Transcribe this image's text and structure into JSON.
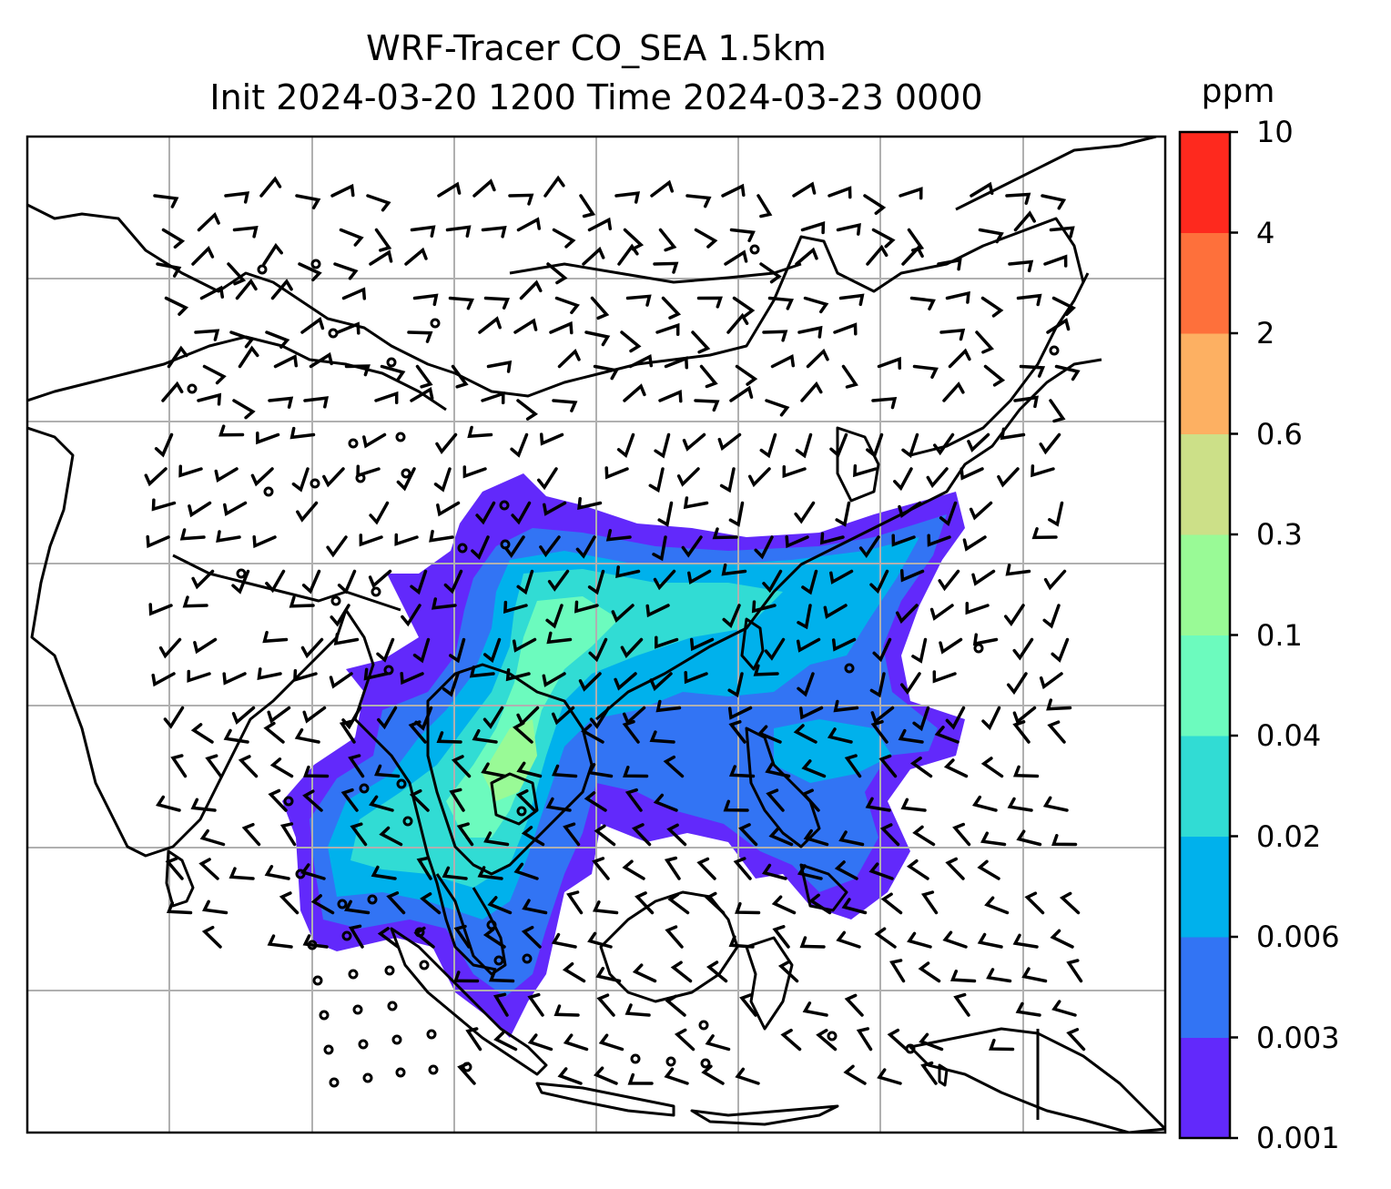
{
  "title": {
    "line1": "WRF-Tracer CO_SEA 1.5km",
    "line2": "Init 2024-03-20 1200 Time 2024-03-23 0000"
  },
  "colorbar": {
    "unit": "ppm",
    "levels": [
      "0.001",
      "0.003",
      "0.006",
      "0.02",
      "0.04",
      "0.1",
      "0.3",
      "0.6",
      "2",
      "4",
      "10"
    ],
    "colors": [
      "#6229fb",
      "#3274f4",
      "#00b1ec",
      "#31dcd4",
      "#6cfbbe",
      "#99fa96",
      "#cce088",
      "#fdb062",
      "#fe703b",
      "#fe291e"
    ]
  },
  "map": {
    "region": "Southeast Asia",
    "field": "CO tracer concentration",
    "overlay": "wind barbs",
    "gridlines": true,
    "coastlines": true
  }
}
